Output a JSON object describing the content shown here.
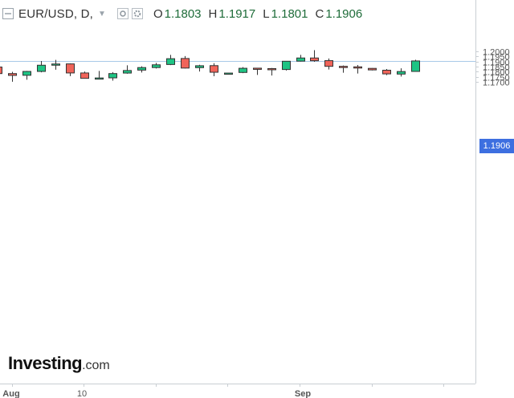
{
  "header": {
    "symbol": "EUR/USD, D,",
    "open_label": "O",
    "open": "1.1803",
    "high_label": "H",
    "high": "1.1917",
    "low_label": "L",
    "low": "1.1801",
    "close_label": "C",
    "close": "1.1906",
    "icons": [
      "menu-icon",
      "caret-down-icon",
      "eye-icon",
      "settings-icon"
    ]
  },
  "logo": {
    "brand": "Investing",
    "suffix": ".com"
  },
  "last_price": "1.1906",
  "colors": {
    "up": "#1ec484",
    "down": "#f0645a",
    "price_tag": "#3d6fe0",
    "price_line": "#a8c9e8"
  },
  "chart_data": {
    "type": "candlestick",
    "y_ticks": [
      "1.1700",
      "1.1750",
      "1.1800",
      "1.1850",
      "1.1900",
      "1.1950",
      "1.2000"
    ],
    "x_ticks": [
      "Aug",
      "10",
      "Sep"
    ],
    "candles": [
      {
        "o": 1.1846,
        "h": 1.1846,
        "l": 1.178,
        "c": 1.1782
      },
      {
        "o": 1.1782,
        "h": 1.1799,
        "l": 1.1702,
        "c": 1.1764
      },
      {
        "o": 1.1765,
        "h": 1.1808,
        "l": 1.1721,
        "c": 1.1803
      },
      {
        "o": 1.1803,
        "h": 1.1906,
        "l": 1.1794,
        "c": 1.1864
      },
      {
        "o": 1.1864,
        "h": 1.1916,
        "l": 1.182,
        "c": 1.1876
      },
      {
        "o": 1.1877,
        "h": 1.1882,
        "l": 1.1757,
        "c": 1.1788
      },
      {
        "o": 1.1788,
        "h": 1.1802,
        "l": 1.1735,
        "c": 1.1735
      },
      {
        "o": 1.1737,
        "h": 1.1808,
        "l": 1.1724,
        "c": 1.1739
      },
      {
        "o": 1.174,
        "h": 1.1796,
        "l": 1.1713,
        "c": 1.1782
      },
      {
        "o": 1.1787,
        "h": 1.1863,
        "l": 1.1781,
        "c": 1.1812
      },
      {
        "o": 1.1816,
        "h": 1.1853,
        "l": 1.1792,
        "c": 1.1841
      },
      {
        "o": 1.1841,
        "h": 1.1887,
        "l": 1.1832,
        "c": 1.1868
      },
      {
        "o": 1.1871,
        "h": 1.1966,
        "l": 1.1865,
        "c": 1.1928
      },
      {
        "o": 1.193,
        "h": 1.1954,
        "l": 1.1832,
        "c": 1.1836
      },
      {
        "o": 1.184,
        "h": 1.1868,
        "l": 1.1802,
        "c": 1.1859
      },
      {
        "o": 1.186,
        "h": 1.1884,
        "l": 1.1756,
        "c": 1.1795
      },
      {
        "o": 1.1787,
        "h": 1.1787,
        "l": 1.1785,
        "c": 1.1787
      },
      {
        "o": 1.1793,
        "h": 1.1845,
        "l": 1.1786,
        "c": 1.1834
      },
      {
        "o": 1.1835,
        "h": 1.1835,
        "l": 1.1769,
        "c": 1.1831
      },
      {
        "o": 1.1831,
        "h": 1.1837,
        "l": 1.1763,
        "c": 1.1821
      },
      {
        "o": 1.1822,
        "h": 1.1903,
        "l": 1.1812,
        "c": 1.1903
      },
      {
        "o": 1.1904,
        "h": 1.1966,
        "l": 1.19,
        "c": 1.1935
      },
      {
        "o": 1.1935,
        "h": 1.2012,
        "l": 1.1898,
        "c": 1.1908
      },
      {
        "o": 1.1909,
        "h": 1.193,
        "l": 1.1822,
        "c": 1.1853
      },
      {
        "o": 1.1853,
        "h": 1.1861,
        "l": 1.179,
        "c": 1.185
      },
      {
        "o": 1.1848,
        "h": 1.1866,
        "l": 1.1782,
        "c": 1.1839
      },
      {
        "o": 1.1833,
        "h": 1.1836,
        "l": 1.1813,
        "c": 1.1818
      },
      {
        "o": 1.1815,
        "h": 1.1827,
        "l": 1.1767,
        "c": 1.1779
      },
      {
        "o": 1.1777,
        "h": 1.1834,
        "l": 1.1753,
        "c": 1.1802
      },
      {
        "o": 1.1803,
        "h": 1.1917,
        "l": 1.1801,
        "c": 1.1906
      }
    ]
  }
}
